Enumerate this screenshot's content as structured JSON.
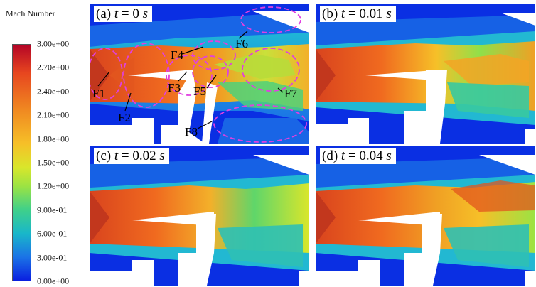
{
  "colorbar": {
    "title": "Mach Number",
    "ticks": [
      "3.00e+00",
      "2.70e+00",
      "2.40e+00",
      "2.10e+00",
      "1.80e+00",
      "1.50e+00",
      "1.20e+00",
      "9.00e-01",
      "6.00e-01",
      "3.00e-01",
      "0.00e+00"
    ]
  },
  "panels": [
    {
      "tag": "(a) ",
      "var": "t",
      "value": " = 0 ",
      "unit": "s"
    },
    {
      "tag": "(b) ",
      "var": "t",
      "value": " = 0.01 ",
      "unit": "s"
    },
    {
      "tag": "(c) ",
      "var": "t",
      "value": " = 0.02 ",
      "unit": "s"
    },
    {
      "tag": "(d) ",
      "var": "t",
      "value": " = 0.04 ",
      "unit": "s"
    }
  ],
  "annotations": [
    "F1",
    "F2",
    "F3",
    "F4",
    "F5",
    "F6",
    "F7",
    "F8"
  ],
  "colors": {
    "low": "#0a1fe0",
    "mid": "#d9e62b",
    "high": "#b40426",
    "ellipse": "#e040e0"
  }
}
